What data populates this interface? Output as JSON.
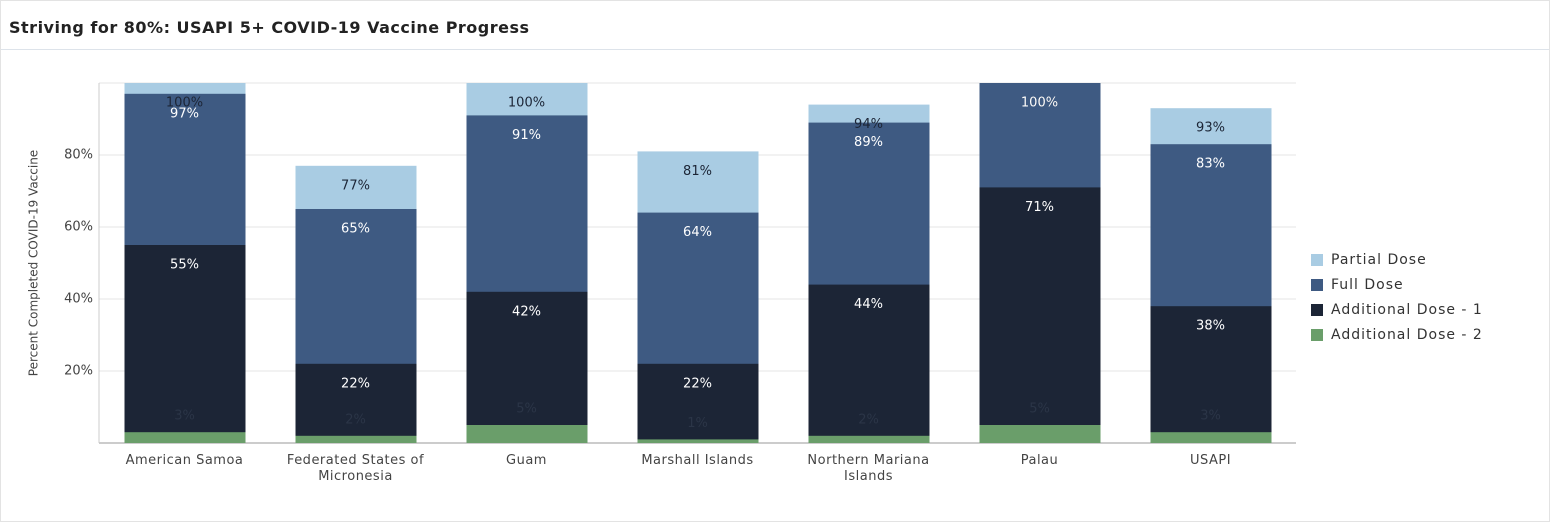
{
  "chart_data": {
    "type": "overlap_bar",
    "title": "Striving for 80%: USAPI 5+ COVID-19 Vaccine Progress",
    "y_label": "Percent Completed COVID-19 Vaccine",
    "categories": [
      "American Samoa",
      "Federated States of Micronesia",
      "Guam",
      "Marshall Islands",
      "Northern Mariana Islands",
      "Palau",
      "USAPI"
    ],
    "series": [
      {
        "name": "Partial Dose",
        "color": "#a9cce3",
        "label_color": "#1c2536",
        "values": [
          100,
          77,
          100,
          81,
          94,
          100,
          93
        ],
        "value_labels": [
          "100%",
          "77%",
          "100%",
          "81%",
          "94%",
          "100%",
          "93%"
        ]
      },
      {
        "name": "Full Dose",
        "color": "#3e5a82",
        "label_color": "#ffffff",
        "values": [
          97,
          65,
          91,
          64,
          89,
          100,
          83
        ],
        "value_labels": [
          "97%",
          "65%",
          "91%",
          "64%",
          "89%",
          "100%",
          "83%"
        ]
      },
      {
        "name": "Additional Dose - 1",
        "color": "#1c2536",
        "label_color": "#ffffff",
        "values": [
          55,
          22,
          42,
          22,
          44,
          71,
          38
        ],
        "value_labels": [
          "55%",
          "22%",
          "42%",
          "22%",
          "44%",
          "71%",
          "38%"
        ]
      },
      {
        "name": "Additional Dose - 2",
        "color": "#6a9e6a",
        "label_color": "#2b3547",
        "values": [
          3,
          2,
          5,
          1,
          2,
          5,
          3
        ],
        "value_labels": [
          "3%",
          "2%",
          "5%",
          "1%",
          "2%",
          "5%",
          "3%"
        ]
      }
    ],
    "ylim": [
      0,
      100
    ],
    "yticks": [
      {
        "value": 20,
        "label": "20%"
      },
      {
        "value": 40,
        "label": "40%"
      },
      {
        "value": 60,
        "label": "60%"
      },
      {
        "value": 80,
        "label": "80%"
      }
    ],
    "grid": true,
    "legend": "right"
  }
}
